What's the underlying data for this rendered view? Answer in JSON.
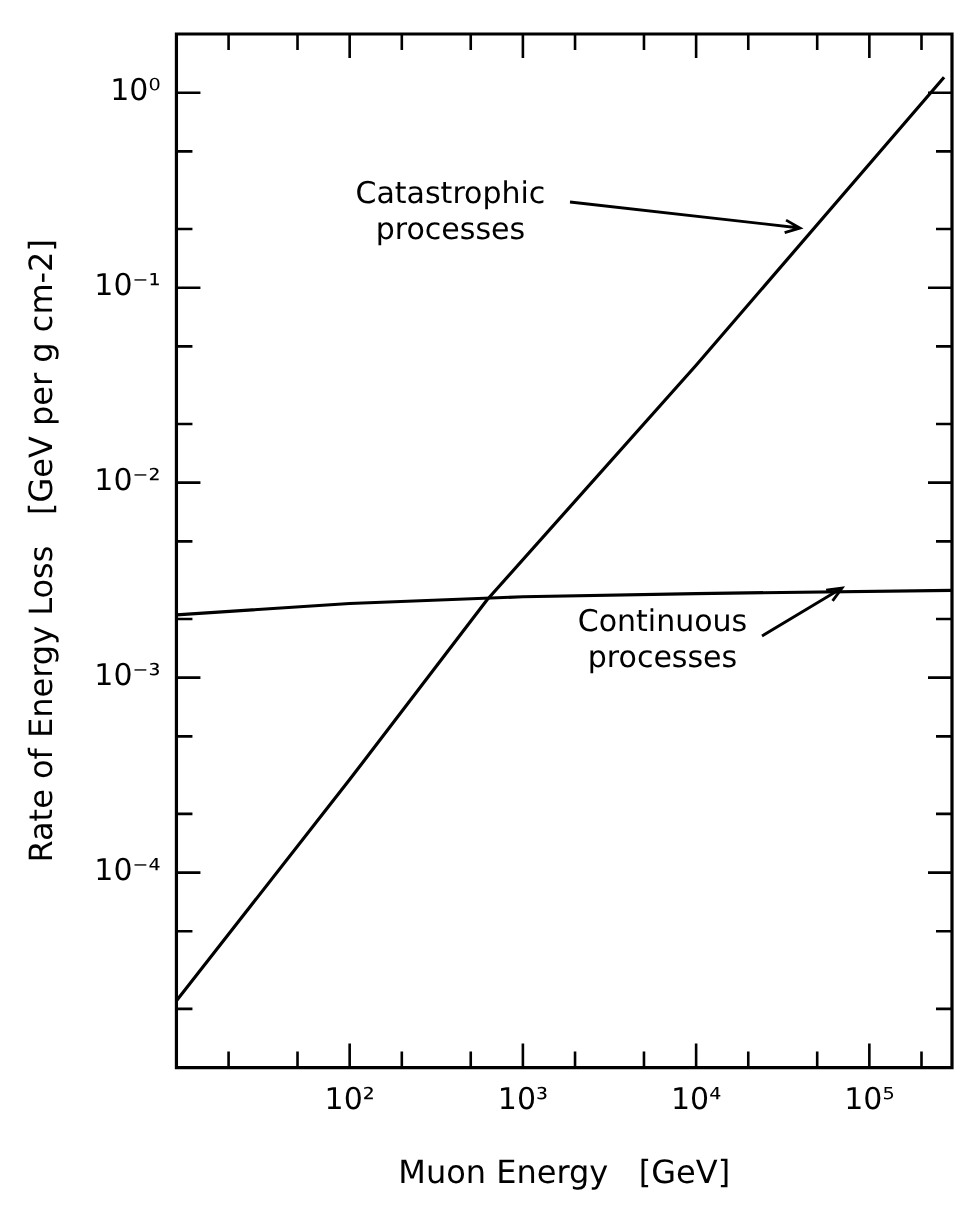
{
  "chart_data": {
    "type": "line",
    "xlabel": "Muon Energy   [GeV]",
    "ylabel": "Rate of Energy Loss   [GeV per g cm-2]",
    "xlim": [
      10,
      300000
    ],
    "ylim": [
      1e-05,
      2
    ],
    "xticks": [
      {
        "value": 20,
        "label": null
      },
      {
        "value": 50,
        "label": null
      },
      {
        "value": 100,
        "label": "10²"
      },
      {
        "value": 200,
        "label": null
      },
      {
        "value": 500,
        "label": null
      },
      {
        "value": 1000,
        "label": "10³"
      },
      {
        "value": 2000,
        "label": null
      },
      {
        "value": 5000,
        "label": null
      },
      {
        "value": 10000,
        "label": "10⁴"
      },
      {
        "value": 20000,
        "label": null
      },
      {
        "value": 50000,
        "label": null
      },
      {
        "value": 100000,
        "label": "10⁵"
      },
      {
        "value": 200000,
        "label": null
      }
    ],
    "yticks": [
      {
        "value": 2e-05,
        "label": null
      },
      {
        "value": 5e-05,
        "label": null
      },
      {
        "value": 0.0001,
        "label": "10⁻⁴"
      },
      {
        "value": 0.0002,
        "label": null
      },
      {
        "value": 0.0005,
        "label": null
      },
      {
        "value": 0.001,
        "label": "10⁻³"
      },
      {
        "value": 0.002,
        "label": null
      },
      {
        "value": 0.005,
        "label": null
      },
      {
        "value": 0.01,
        "label": "10⁻²"
      },
      {
        "value": 0.02,
        "label": null
      },
      {
        "value": 0.05,
        "label": null
      },
      {
        "value": 0.1,
        "label": "10⁻¹"
      },
      {
        "value": 0.2,
        "label": null
      },
      {
        "value": 0.5,
        "label": null
      },
      {
        "value": 1,
        "label": "10⁰"
      }
    ],
    "log": "xy",
    "grid": false,
    "legend": false,
    "marker": "none",
    "line_style": "solid",
    "series": [
      {
        "color": "#000000",
        "x": [
          10,
          100,
          620,
          10000,
          270000
        ],
        "values": [
          2.2e-05,
          0.0003,
          0.0025,
          0.04,
          1.2
        ]
      },
      {
        "color": "#000000",
        "x": [
          10,
          100,
          1000,
          10000,
          300000
        ],
        "values": [
          0.0021,
          0.0024,
          0.0026,
          0.0027,
          0.0028
        ]
      }
    ],
    "annotations": [
      {
        "text": "Catastrophic\nprocesses",
        "x": 40000,
        "y": 0.2
      },
      {
        "text": "Continuous\nprocesses",
        "x": 70000,
        "y": 0.0029
      }
    ]
  }
}
